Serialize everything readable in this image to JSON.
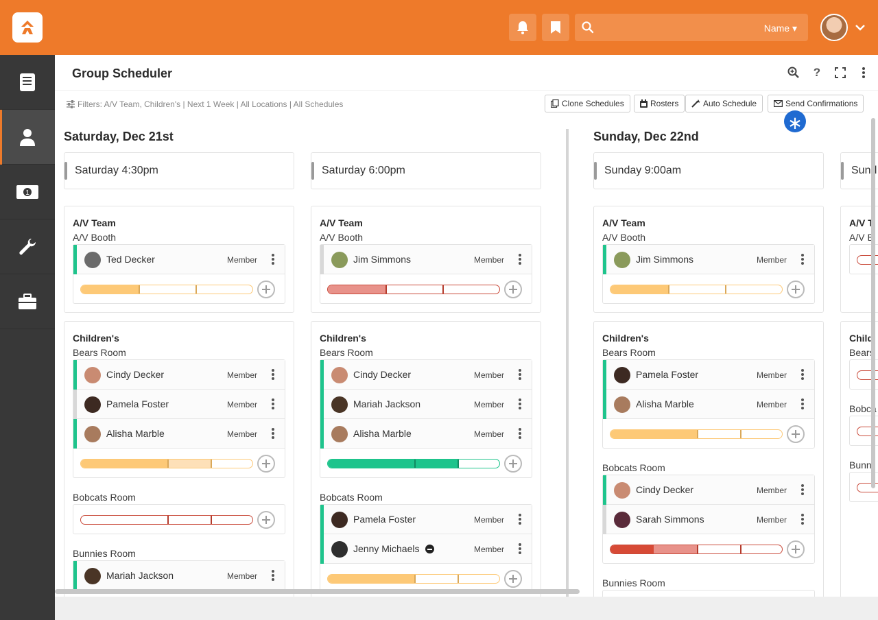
{
  "header": {
    "search_scope": "Name"
  },
  "sidebar": {
    "items": [
      "book-icon",
      "person-icon",
      "money-icon",
      "wrench-icon",
      "briefcase-icon"
    ],
    "active": "person-icon"
  },
  "page": {
    "title": "Group Scheduler",
    "filters": "Filters: A/V Team, Children's | Next 1 Week | All Locations | All Schedules",
    "buttons": {
      "clone": "Clone Schedules",
      "rosters": "Rosters",
      "auto": "Auto Schedule",
      "send": "Send Confirmations"
    }
  },
  "days": [
    {
      "title": "Saturday, Dec 21st",
      "occurrences": [
        "Saturday 4:30pm",
        "Saturday 6:00pm"
      ]
    },
    {
      "title": "Sunday, Dec 22nd",
      "occurrences": [
        "Sunday 9:00am",
        "Sund"
      ]
    }
  ],
  "columns": [
    {
      "av": {
        "group": "A/V Team",
        "location": "A/V Booth",
        "people": [
          {
            "name": "Ted Decker",
            "role": "Member"
          }
        ]
      },
      "children": {
        "group": "Children's",
        "bears": {
          "location": "Bears Room",
          "people": [
            {
              "name": "Cindy Decker",
              "role": "Member"
            },
            {
              "name": "Pamela Foster",
              "role": "Member"
            },
            {
              "name": "Alisha Marble",
              "role": "Member"
            }
          ]
        },
        "bobcats": {
          "location": "Bobcats Room",
          "people": []
        },
        "bunnies": {
          "location": "Bunnies Room",
          "people": [
            {
              "name": "Mariah Jackson",
              "role": "Member"
            }
          ]
        }
      }
    },
    {
      "av": {
        "group": "A/V Team",
        "location": "A/V Booth",
        "people": [
          {
            "name": "Jim Simmons",
            "role": "Member"
          }
        ]
      },
      "children": {
        "group": "Children's",
        "bears": {
          "location": "Bears Room",
          "people": [
            {
              "name": "Cindy Decker",
              "role": "Member"
            },
            {
              "name": "Mariah Jackson",
              "role": "Member"
            },
            {
              "name": "Alisha Marble",
              "role": "Member"
            }
          ]
        },
        "bobcats": {
          "location": "Bobcats Room",
          "people": [
            {
              "name": "Pamela Foster",
              "role": "Member"
            },
            {
              "name": "Jenny Michaels",
              "role": "Member"
            }
          ]
        }
      }
    },
    {
      "av": {
        "group": "A/V Team",
        "location": "A/V Booth",
        "people": [
          {
            "name": "Jim Simmons",
            "role": "Member"
          }
        ]
      },
      "children": {
        "group": "Children's",
        "bears": {
          "location": "Bears Room",
          "people": [
            {
              "name": "Pamela Foster",
              "role": "Member"
            },
            {
              "name": "Alisha Marble",
              "role": "Member"
            }
          ]
        },
        "bobcats": {
          "location": "Bobcats Room",
          "people": [
            {
              "name": "Cindy Decker",
              "role": "Member"
            },
            {
              "name": "Sarah Simmons",
              "role": "Member"
            }
          ]
        },
        "bunnies": {
          "location": "Bunnies Room"
        }
      }
    },
    {
      "av": {
        "group": "A/V T",
        "location": "A/V B"
      },
      "children": {
        "group": "Child",
        "bears": {
          "location": "Bears"
        },
        "bobcats": {
          "location": "Bobca"
        },
        "bunnies": {
          "location": "Bunn"
        }
      }
    }
  ],
  "colors": {
    "brand": "#ee7a2a",
    "confirmed": "#1ec48c",
    "pending": "#d8d8d8",
    "yellow_fill": "#fdc977",
    "red_fill": "#e8928a",
    "green_fill": "#1ec48c"
  }
}
